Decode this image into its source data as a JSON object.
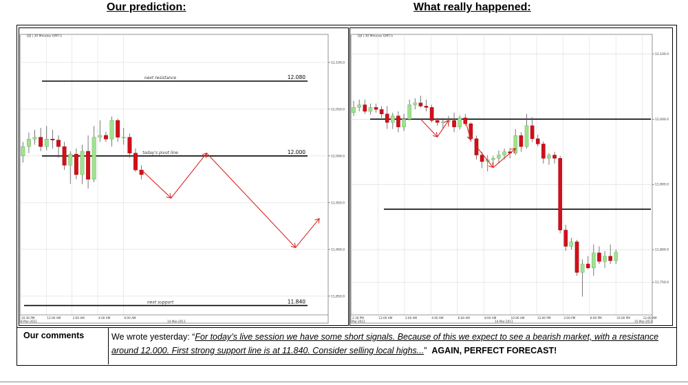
{
  "headings": {
    "left": "Our prediction:",
    "right": "What really happened:"
  },
  "comments": {
    "label": "Our comments",
    "intro": "We wrote yesterday: “",
    "quote": "For today’s live session we have some short signals. Because of this we expect to see a bearish market, with a resistance around 12.000. First strong support line is at 11.840. Consider selling local highs...",
    "close_quote": "”",
    "emphasis": "AGAIN, PERFECT FORECAST!"
  },
  "colors": {
    "bull": "#9fe28f",
    "bear": "#d0101a",
    "arrow": "#dd2222",
    "grid": "#dcdcdc"
  },
  "chart_data": [
    {
      "type": "candlestick",
      "instrument": "DJI | 30 Minutes GMT-5",
      "ylim": [
        11830,
        12130
      ],
      "y_ticks": [
        {
          "v": 12100,
          "label": "12,100.0"
        },
        {
          "v": 12050,
          "label": "12,050.0"
        },
        {
          "v": 12000,
          "label": "12,000.0"
        },
        {
          "v": 11950,
          "label": "11,950.0"
        },
        {
          "v": 11900,
          "label": "11,900.0"
        },
        {
          "v": 11850,
          "label": "11,850.0"
        }
      ],
      "x_ticks": [
        "10:30 PM",
        "12:00 AM",
        "2:00 AM",
        "4:00 AM",
        "6:00 AM"
      ],
      "date_labels": [
        "8-Mar-2011",
        "14-Mar-2011"
      ],
      "n_slots": 52,
      "candles": [
        {
          "o": 12000,
          "h": 12015,
          "l": 11993,
          "c": 12010
        },
        {
          "o": 12010,
          "h": 12025,
          "l": 12003,
          "c": 12018
        },
        {
          "o": 12018,
          "h": 12028,
          "l": 12012,
          "c": 12020
        },
        {
          "o": 12020,
          "h": 12030,
          "l": 12005,
          "c": 12010
        },
        {
          "o": 12010,
          "h": 12032,
          "l": 12006,
          "c": 12018
        },
        {
          "o": 12018,
          "h": 12028,
          "l": 12008,
          "c": 12017
        },
        {
          "o": 12017,
          "h": 12022,
          "l": 11998,
          "c": 12010
        },
        {
          "o": 12010,
          "h": 12015,
          "l": 11985,
          "c": 11990
        },
        {
          "o": 11990,
          "h": 12005,
          "l": 11970,
          "c": 12002
        },
        {
          "o": 12002,
          "h": 12008,
          "l": 11975,
          "c": 11980
        },
        {
          "o": 11980,
          "h": 12012,
          "l": 11970,
          "c": 12005
        },
        {
          "o": 12005,
          "h": 12022,
          "l": 11965,
          "c": 11975
        },
        {
          "o": 11975,
          "h": 12032,
          "l": 11972,
          "c": 12020
        },
        {
          "o": 12020,
          "h": 12038,
          "l": 12015,
          "c": 12022
        },
        {
          "o": 12022,
          "h": 12026,
          "l": 12015,
          "c": 12018
        },
        {
          "o": 12018,
          "h": 12042,
          "l": 12010,
          "c": 12038
        },
        {
          "o": 12038,
          "h": 12040,
          "l": 12015,
          "c": 12020
        },
        {
          "o": 12020,
          "h": 12030,
          "l": 12012,
          "c": 12020
        },
        {
          "o": 12020,
          "h": 12024,
          "l": 11998,
          "c": 12003
        },
        {
          "o": 12003,
          "h": 12008,
          "l": 11983,
          "c": 11985
        },
        {
          "o": 11985,
          "h": 11990,
          "l": 11975,
          "c": 11980
        }
      ],
      "levels": [
        {
          "value": 12080,
          "label": "next resistance",
          "price": "12.080"
        },
        {
          "value": 12000,
          "label": "today's pivot line",
          "price": "12.000"
        },
        {
          "value": 11840,
          "label": "next support",
          "price": "11.840"
        }
      ],
      "forecast_path": [
        {
          "slot": 20,
          "v": 11985
        },
        {
          "slot": 25,
          "v": 11955
        },
        {
          "slot": 31,
          "v": 12003
        },
        {
          "slot": 46,
          "v": 11902
        },
        {
          "slot": 50,
          "v": 11933
        }
      ]
    },
    {
      "type": "candlestick",
      "instrument": "DJI | 30 Minutes GMT-5",
      "ylim": [
        11700,
        12130
      ],
      "y_ticks": [
        {
          "v": 12100,
          "label": "12,100.0"
        },
        {
          "v": 12000,
          "label": "12,000.0"
        },
        {
          "v": 11900,
          "label": "11,900.0"
        },
        {
          "v": 11800,
          "label": "11,800.0"
        },
        {
          "v": 11750,
          "label": "11,750.0"
        }
      ],
      "x_ticks": [
        "2:30 PM",
        "12:00 AM",
        "2:00 AM",
        "4:00 AM",
        "6:00 AM",
        "8:00 AM",
        "10:00 AM",
        "12:00 PM",
        "2:00 PM",
        "8:00 PM",
        "10:00 PM",
        "12:00 AM"
      ],
      "date_labels": [
        "Mar-2011",
        "14-Mar-2011",
        "15-Mar-2011"
      ],
      "n_slots": 54,
      "candles": [
        {
          "o": 12010,
          "h": 12028,
          "l": 12005,
          "c": 12018
        },
        {
          "o": 12018,
          "h": 12030,
          "l": 12012,
          "c": 12022
        },
        {
          "o": 12022,
          "h": 12030,
          "l": 12008,
          "c": 12012
        },
        {
          "o": 12012,
          "h": 12024,
          "l": 12007,
          "c": 12018
        },
        {
          "o": 12018,
          "h": 12024,
          "l": 12010,
          "c": 12015
        },
        {
          "o": 12015,
          "h": 12020,
          "l": 12002,
          "c": 12008
        },
        {
          "o": 12008,
          "h": 12020,
          "l": 11985,
          "c": 11995
        },
        {
          "o": 11995,
          "h": 12010,
          "l": 11985,
          "c": 12005
        },
        {
          "o": 12005,
          "h": 12012,
          "l": 11980,
          "c": 11988
        },
        {
          "o": 11988,
          "h": 12008,
          "l": 11982,
          "c": 12000
        },
        {
          "o": 12000,
          "h": 12030,
          "l": 11998,
          "c": 12022
        },
        {
          "o": 12022,
          "h": 12032,
          "l": 12015,
          "c": 12025
        },
        {
          "o": 12025,
          "h": 12036,
          "l": 12018,
          "c": 12020
        },
        {
          "o": 12020,
          "h": 12030,
          "l": 12012,
          "c": 12018
        },
        {
          "o": 12018,
          "h": 12022,
          "l": 11995,
          "c": 11998
        },
        {
          "o": 11998,
          "h": 12002,
          "l": 11990,
          "c": 11995
        },
        {
          "o": 11995,
          "h": 12002,
          "l": 11985,
          "c": 11996
        },
        {
          "o": 11996,
          "h": 12005,
          "l": 11988,
          "c": 11998
        },
        {
          "o": 11998,
          "h": 12010,
          "l": 11980,
          "c": 11988
        },
        {
          "o": 11988,
          "h": 12006,
          "l": 11984,
          "c": 12002
        },
        {
          "o": 12002,
          "h": 12008,
          "l": 11990,
          "c": 11993
        },
        {
          "o": 11993,
          "h": 11995,
          "l": 11965,
          "c": 11970
        },
        {
          "o": 11970,
          "h": 11975,
          "l": 11938,
          "c": 11945
        },
        {
          "o": 11945,
          "h": 11950,
          "l": 11925,
          "c": 11935
        },
        {
          "o": 11935,
          "h": 11945,
          "l": 11920,
          "c": 11938
        },
        {
          "o": 11938,
          "h": 11944,
          "l": 11928,
          "c": 11940
        },
        {
          "o": 11940,
          "h": 11952,
          "l": 11932,
          "c": 11945
        },
        {
          "o": 11945,
          "h": 11955,
          "l": 11938,
          "c": 11950
        },
        {
          "o": 11950,
          "h": 11956,
          "l": 11940,
          "c": 11948
        },
        {
          "o": 11948,
          "h": 11985,
          "l": 11945,
          "c": 11975
        },
        {
          "o": 11975,
          "h": 11980,
          "l": 11950,
          "c": 11958
        },
        {
          "o": 11958,
          "h": 12008,
          "l": 11955,
          "c": 11990
        },
        {
          "o": 11990,
          "h": 12003,
          "l": 11965,
          "c": 11970
        },
        {
          "o": 11970,
          "h": 11976,
          "l": 11958,
          "c": 11962
        },
        {
          "o": 11962,
          "h": 11966,
          "l": 11932,
          "c": 11940
        },
        {
          "o": 11940,
          "h": 11948,
          "l": 11930,
          "c": 11945
        },
        {
          "o": 11945,
          "h": 11950,
          "l": 11932,
          "c": 11940
        },
        {
          "o": 11940,
          "h": 11944,
          "l": 11825,
          "c": 11830
        },
        {
          "o": 11830,
          "h": 11838,
          "l": 11798,
          "c": 11805
        },
        {
          "o": 11805,
          "h": 11818,
          "l": 11800,
          "c": 11812
        },
        {
          "o": 11812,
          "h": 11815,
          "l": 11760,
          "c": 11765
        },
        {
          "o": 11765,
          "h": 11785,
          "l": 11728,
          "c": 11778
        },
        {
          "o": 11778,
          "h": 11790,
          "l": 11770,
          "c": 11772
        },
        {
          "o": 11772,
          "h": 11808,
          "l": 11760,
          "c": 11795
        },
        {
          "o": 11795,
          "h": 11805,
          "l": 11778,
          "c": 11782
        },
        {
          "o": 11782,
          "h": 11798,
          "l": 11772,
          "c": 11790
        },
        {
          "o": 11790,
          "h": 11808,
          "l": 11778,
          "c": 11783
        },
        {
          "o": 11783,
          "h": 11800,
          "l": 11778,
          "c": 11796
        }
      ],
      "levels": [
        {
          "value": 12000
        },
        {
          "value": 11862
        }
      ],
      "arrow_paths": [
        [
          {
            "slot": 12,
            "v": 12000
          },
          {
            "slot": 15,
            "v": 11973
          },
          {
            "slot": 17,
            "v": 11998
          }
        ],
        [
          {
            "slot": 20,
            "v": 11998
          },
          {
            "slot": 21,
            "v": 11968
          }
        ],
        [
          {
            "slot": 22,
            "v": 11958
          },
          {
            "slot": 25,
            "v": 11926
          },
          {
            "slot": 29,
            "v": 11955
          }
        ]
      ]
    }
  ]
}
